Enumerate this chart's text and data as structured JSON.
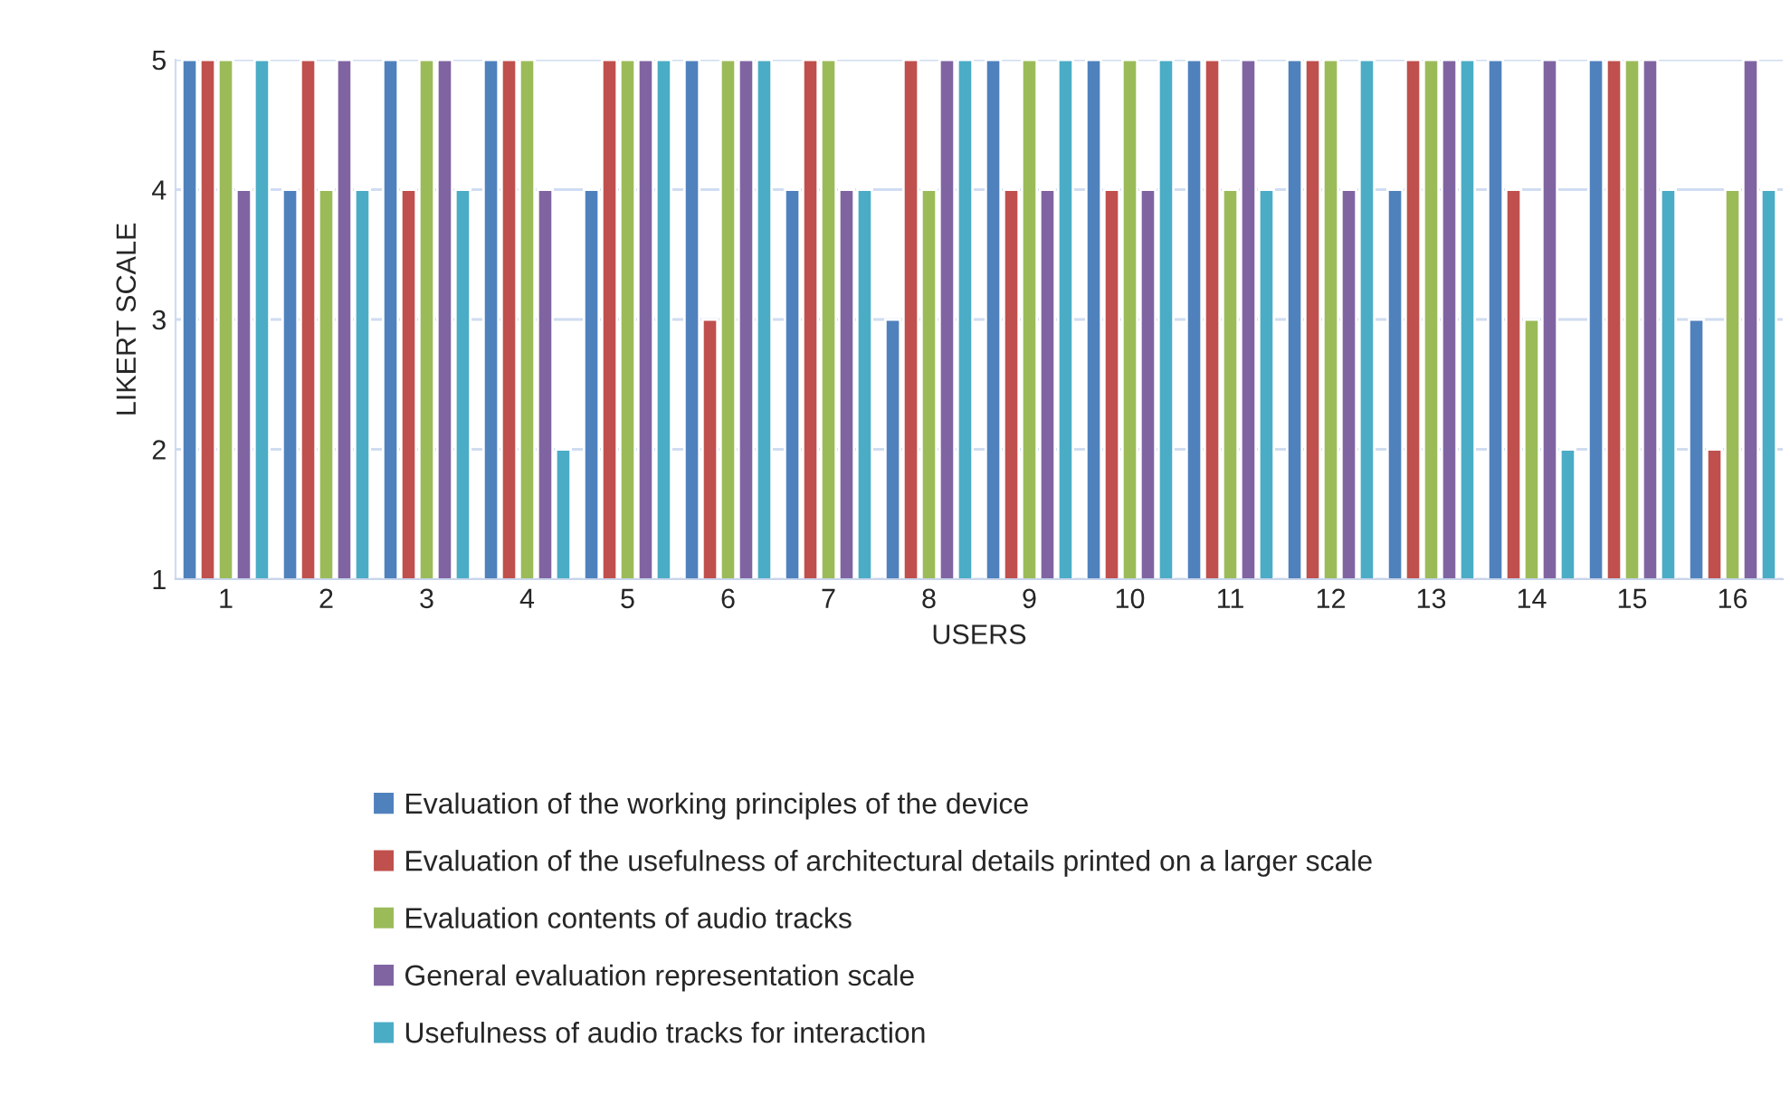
{
  "chart_data": {
    "type": "bar",
    "xlabel": "USERS",
    "ylabel": "LIKERT SCALE",
    "categories": [
      "1",
      "2",
      "3",
      "4",
      "5",
      "6",
      "7",
      "8",
      "9",
      "10",
      "11",
      "12",
      "13",
      "14",
      "15",
      "16"
    ],
    "series": [
      {
        "name": "Evaluation of the working principles of the device",
        "color": "#4f81bd",
        "values": [
          5,
          4,
          5,
          5,
          4,
          5,
          4,
          3,
          5,
          5,
          5,
          5,
          4,
          5,
          5,
          3
        ]
      },
      {
        "name": "Evaluation of the usefulness of architectural details printed on a larger scale",
        "color": "#c0504d",
        "values": [
          5,
          5,
          4,
          5,
          5,
          3,
          5,
          5,
          4,
          4,
          5,
          5,
          5,
          4,
          5,
          2
        ]
      },
      {
        "name": "Evaluation contents of audio tracks",
        "color": "#9bbb59",
        "values": [
          5,
          4,
          5,
          5,
          5,
          5,
          5,
          4,
          5,
          5,
          4,
          5,
          5,
          3,
          5,
          4
        ]
      },
      {
        "name": "General evaluation representation scale",
        "color": "#8064a2",
        "values": [
          4,
          5,
          5,
          4,
          5,
          5,
          4,
          5,
          4,
          4,
          5,
          4,
          5,
          5,
          5,
          5
        ]
      },
      {
        "name": "Usefulness of audio tracks for interaction",
        "color": "#4bacc6",
        "values": [
          5,
          4,
          4,
          2,
          5,
          5,
          4,
          5,
          5,
          5,
          4,
          5,
          5,
          2,
          4,
          4
        ]
      }
    ],
    "ylim": [
      1,
      5
    ],
    "yticks": [
      1,
      2,
      3,
      4,
      5
    ],
    "grid": "y",
    "legend": "bottom"
  }
}
